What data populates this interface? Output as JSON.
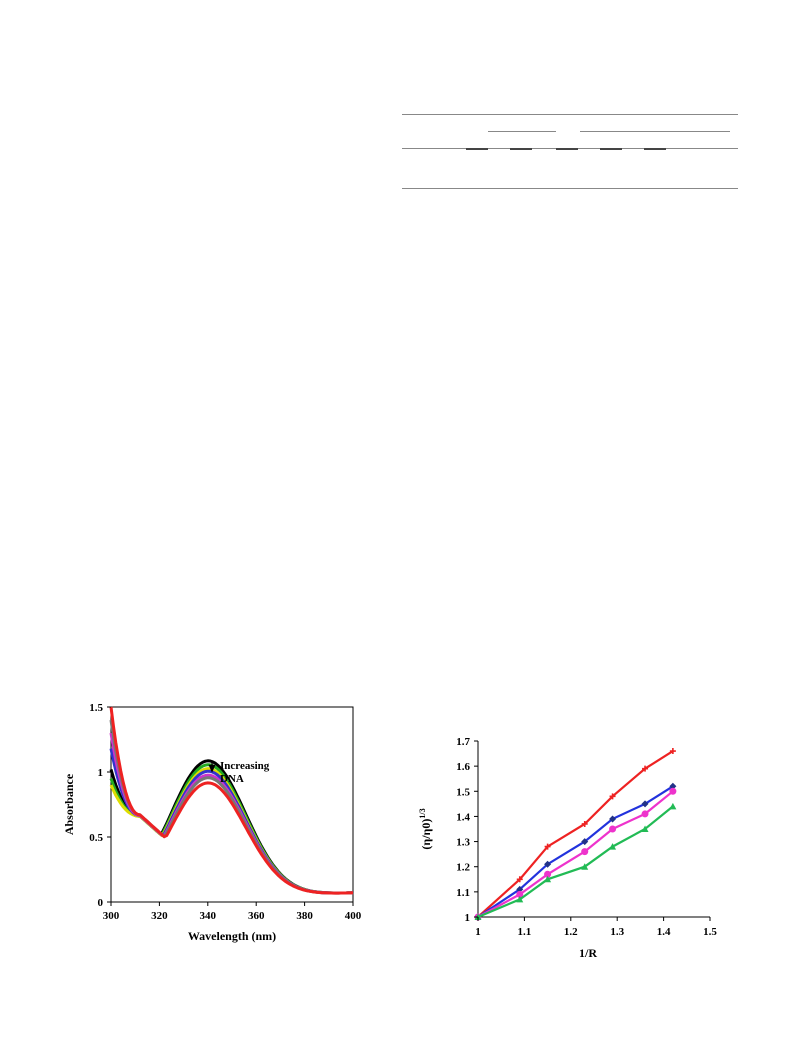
{
  "table_fragment": {
    "rows": 3
  },
  "chart_data": [
    {
      "type": "line",
      "xlabel": "Wavelength (nm)",
      "ylabel": "Absorbance",
      "xlim": [
        300,
        400
      ],
      "ylim": [
        0,
        1.5
      ],
      "xticks": [
        "300",
        "320",
        "340",
        "360",
        "380",
        "400"
      ],
      "yticks": [
        "0",
        "0.5",
        "1",
        "1.5"
      ],
      "annotation": {
        "line1": "Increasing",
        "line2": "DNA",
        "at_x": 350,
        "from_y": 1.1,
        "to_y": 1.01
      },
      "grid": false,
      "legend": "none",
      "series": [
        {
          "color": "#000000",
          "peak": 1.07,
          "min_at_312": 0.66,
          "start": 1.02
        },
        {
          "color": "#22aa22",
          "peak": 1.04,
          "min_at_312": 0.66,
          "start": 0.95
        },
        {
          "color": "#dddd00",
          "peak": 1.01,
          "min_at_312": 0.66,
          "start": 0.9
        },
        {
          "color": "#3333cc",
          "peak": 0.99,
          "min_at_312": 0.665,
          "start": 1.18
        },
        {
          "color": "#cc33cc",
          "peak": 0.96,
          "min_at_312": 0.665,
          "start": 1.3
        },
        {
          "color": "#777777",
          "peak": 0.94,
          "min_at_312": 0.67,
          "start": 1.4
        },
        {
          "color": "#ee2222",
          "peak": 0.9,
          "min_at_312": 0.67,
          "start": 1.5
        }
      ]
    },
    {
      "type": "line",
      "xlabel": "1/R",
      "ylabel": "(η/η0)",
      "ylabel_sup": "1/3",
      "xlim": [
        1,
        1.5
      ],
      "ylim": [
        1,
        1.7
      ],
      "xticks": [
        "1",
        "1.1",
        "1.2",
        "1.3",
        "1.4",
        "1.5"
      ],
      "yticks": [
        "1",
        "1.1",
        "1.2",
        "1.3",
        "1.4",
        "1.5",
        "1.6",
        "1.7"
      ],
      "grid": false,
      "legend": "none",
      "series": [
        {
          "color": "#ee2222",
          "marker": "plus",
          "x": [
            1,
            1.09,
            1.15,
            1.23,
            1.29,
            1.36,
            1.42
          ],
          "y": [
            1,
            1.15,
            1.28,
            1.37,
            1.48,
            1.59,
            1.66
          ]
        },
        {
          "color": "#2233dd",
          "marker": "diamond",
          "x": [
            1,
            1.09,
            1.15,
            1.23,
            1.29,
            1.36,
            1.42
          ],
          "y": [
            1,
            1.11,
            1.21,
            1.3,
            1.39,
            1.45,
            1.52
          ]
        },
        {
          "color": "#ee33cc",
          "marker": "circle",
          "x": [
            1,
            1.09,
            1.15,
            1.23,
            1.29,
            1.36,
            1.42
          ],
          "y": [
            1,
            1.09,
            1.17,
            1.26,
            1.35,
            1.41,
            1.5
          ]
        },
        {
          "color": "#22bb55",
          "marker": "triangle",
          "x": [
            1,
            1.09,
            1.15,
            1.23,
            1.29,
            1.36,
            1.42
          ],
          "y": [
            1,
            1.07,
            1.15,
            1.2,
            1.28,
            1.35,
            1.44
          ]
        }
      ]
    }
  ]
}
